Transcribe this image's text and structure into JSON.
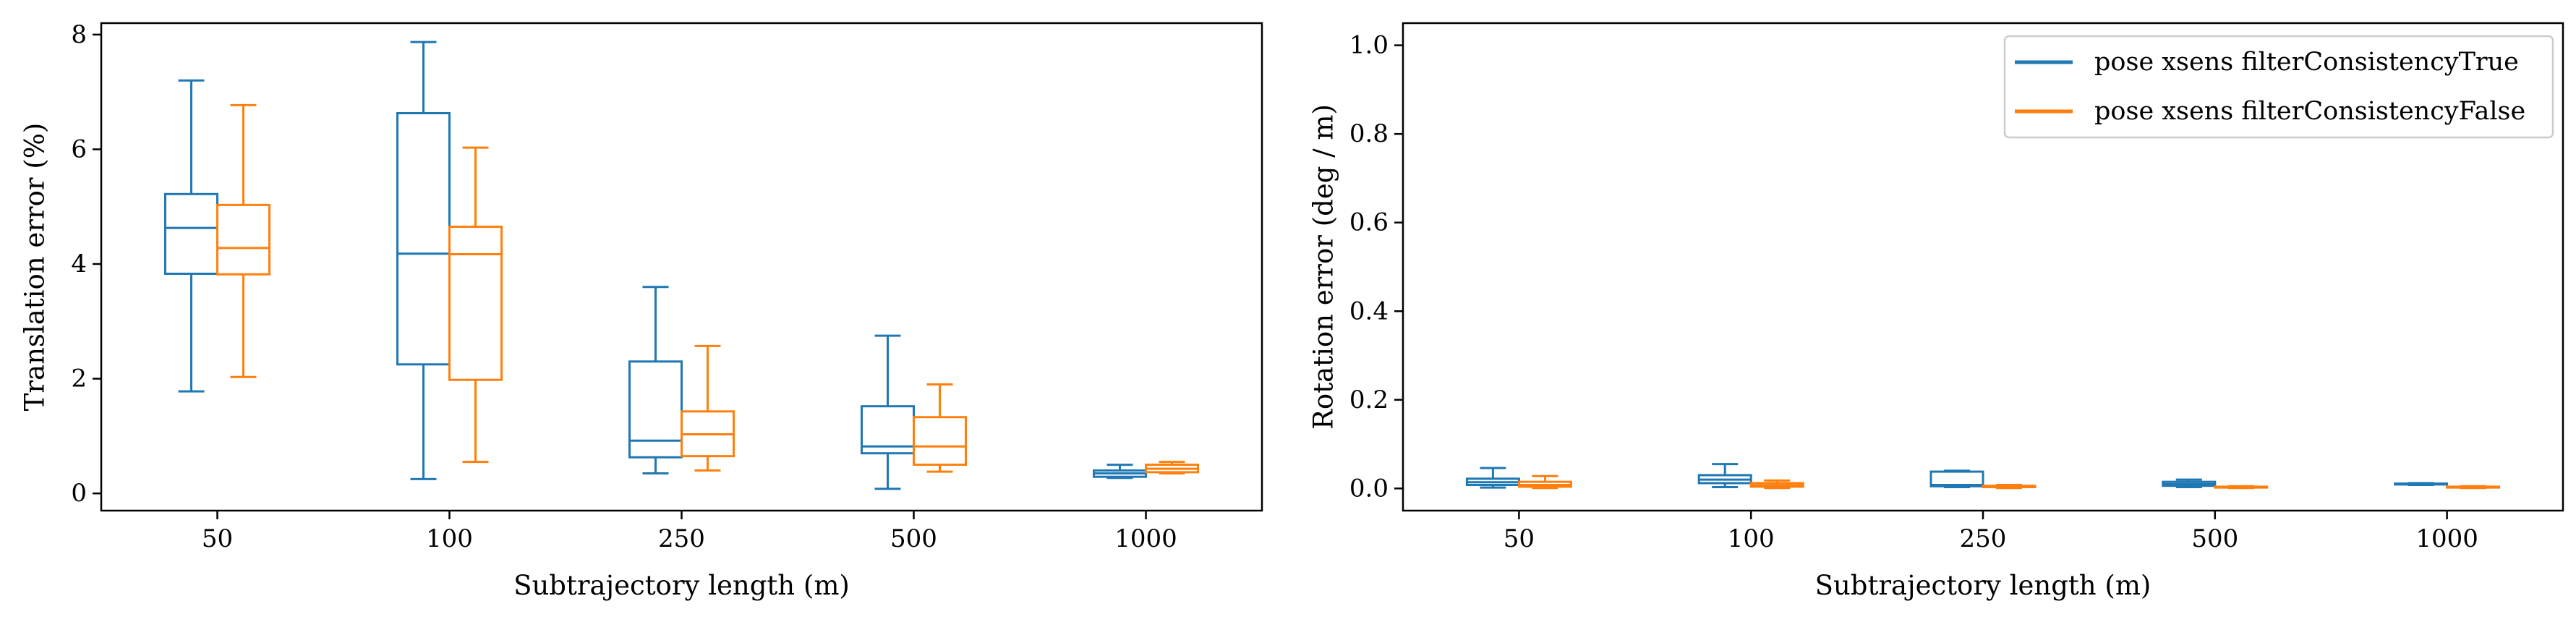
{
  "colors": {
    "series0": "#1f77b4",
    "series1": "#ff7f0e",
    "axis": "#000000"
  },
  "chart_data": [
    {
      "type": "box",
      "categories": [
        "50",
        "100",
        "250",
        "500",
        "1000"
      ],
      "xlabel": "Subtrajectory length (m)",
      "ylabel": "Translation error (%)",
      "ylim": [
        -0.3,
        8.2
      ],
      "yticks": [
        0,
        2,
        4,
        6,
        8
      ],
      "legend": null,
      "series": [
        {
          "name": "pose xsens filterConsistencyTrue",
          "boxes": [
            {
              "whislo": 1.78,
              "q1": 3.83,
              "med": 4.63,
              "q3": 5.22,
              "whishi": 7.2
            },
            {
              "whislo": 0.25,
              "q1": 2.25,
              "med": 4.18,
              "q3": 6.63,
              "whishi": 7.87
            },
            {
              "whislo": 0.35,
              "q1": 0.63,
              "med": 0.92,
              "q3": 2.3,
              "whishi": 3.6
            },
            {
              "whislo": 0.08,
              "q1": 0.7,
              "med": 0.82,
              "q3": 1.52,
              "whishi": 2.75
            },
            {
              "whislo": 0.27,
              "q1": 0.29,
              "med": 0.35,
              "q3": 0.4,
              "whishi": 0.5
            }
          ]
        },
        {
          "name": "pose xsens filterConsistencyFalse",
          "boxes": [
            {
              "whislo": 2.03,
              "q1": 3.82,
              "med": 4.28,
              "q3": 5.03,
              "whishi": 6.77
            },
            {
              "whislo": 0.55,
              "q1": 1.98,
              "med": 4.17,
              "q3": 4.65,
              "whishi": 6.03
            },
            {
              "whislo": 0.4,
              "q1": 0.65,
              "med": 1.03,
              "q3": 1.43,
              "whishi": 2.57
            },
            {
              "whislo": 0.38,
              "q1": 0.5,
              "med": 0.82,
              "q3": 1.33,
              "whishi": 1.9
            },
            {
              "whislo": 0.35,
              "q1": 0.37,
              "med": 0.43,
              "q3": 0.5,
              "whishi": 0.55
            }
          ]
        }
      ]
    },
    {
      "type": "box",
      "categories": [
        "50",
        "100",
        "250",
        "500",
        "1000"
      ],
      "xlabel": "Subtrajectory length (m)",
      "ylabel": "Rotation error (deg / m)",
      "ylim": [
        -0.05,
        1.05
      ],
      "yticks": [
        "0.0",
        "0.2",
        "0.4",
        "0.6",
        "0.8",
        "1.0"
      ],
      "legend": "top-right",
      "series": [
        {
          "name": "pose xsens filterConsistencyTrue",
          "boxes": [
            {
              "whislo": 0.002,
              "q1": 0.008,
              "med": 0.014,
              "q3": 0.022,
              "whishi": 0.046
            },
            {
              "whislo": 0.003,
              "q1": 0.012,
              "med": 0.02,
              "q3": 0.03,
              "whishi": 0.055
            },
            {
              "whislo": 0.003,
              "q1": 0.005,
              "med": 0.008,
              "q3": 0.038,
              "whishi": 0.04
            },
            {
              "whislo": 0.003,
              "q1": 0.006,
              "med": 0.01,
              "q3": 0.015,
              "whishi": 0.02
            },
            {
              "whislo": 0.008,
              "q1": 0.009,
              "med": 0.01,
              "q3": 0.011,
              "whishi": 0.012
            }
          ]
        },
        {
          "name": "pose xsens filterConsistencyFalse",
          "boxes": [
            {
              "whislo": 0.001,
              "q1": 0.004,
              "med": 0.008,
              "q3": 0.015,
              "whishi": 0.028
            },
            {
              "whislo": 0.001,
              "q1": 0.004,
              "med": 0.007,
              "q3": 0.012,
              "whishi": 0.018
            },
            {
              "whislo": 0.001,
              "q1": 0.003,
              "med": 0.004,
              "q3": 0.006,
              "whishi": 0.008
            },
            {
              "whislo": 0.001,
              "q1": 0.002,
              "med": 0.003,
              "q3": 0.004,
              "whishi": 0.005
            },
            {
              "whislo": 0.001,
              "q1": 0.002,
              "med": 0.003,
              "q3": 0.004,
              "whishi": 0.005
            }
          ]
        }
      ]
    }
  ]
}
